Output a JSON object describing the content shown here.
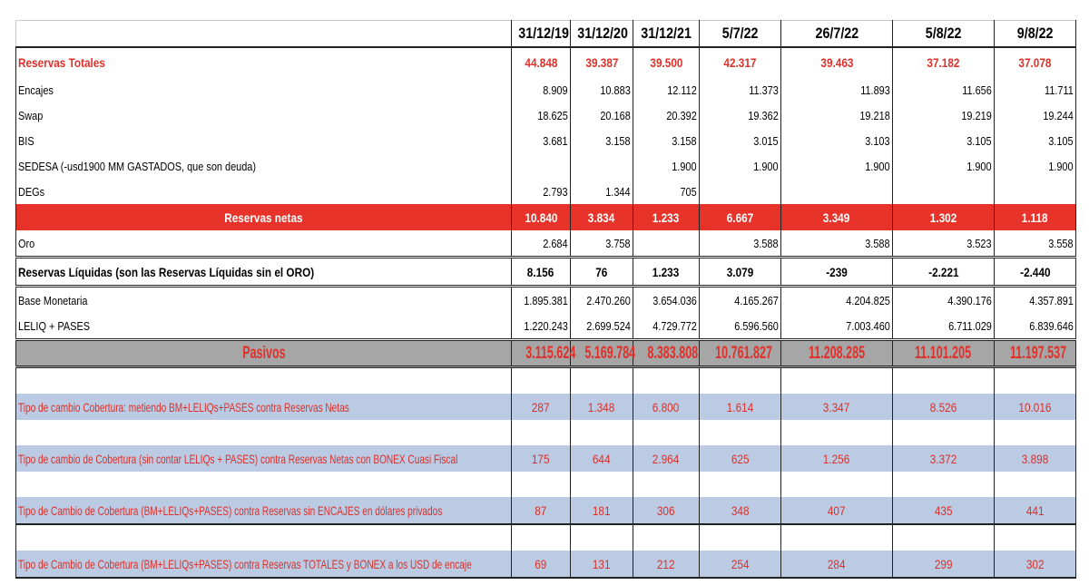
{
  "columns": [
    "31/12/19",
    "31/12/20",
    "31/12/21",
    "5/7/22",
    "26/7/22",
    "5/8/22",
    "9/8/22"
  ],
  "rows": [
    {
      "type": "red-title",
      "label": "Reservas Totales",
      "values": [
        "44.848",
        "39.387",
        "39.500",
        "42.317",
        "39.463",
        "37.182",
        "37.078"
      ]
    },
    {
      "type": "plain",
      "label": "Encajes",
      "values": [
        "8.909",
        "10.883",
        "12.112",
        "11.373",
        "11.893",
        "11.656",
        "11.711"
      ]
    },
    {
      "type": "plain",
      "label": "Swap",
      "values": [
        "18.625",
        "20.168",
        "20.392",
        "19.362",
        "19.218",
        "19.219",
        "19.244"
      ]
    },
    {
      "type": "plain",
      "label": "BIS",
      "values": [
        "3.681",
        "3.158",
        "3.158",
        "3.015",
        "3.103",
        "3.105",
        "3.105"
      ]
    },
    {
      "type": "plain",
      "label": "SEDESA (-usd1900 MM GASTADOS, que son deuda)",
      "values": [
        "",
        "",
        "1.900",
        "1.900",
        "1.900",
        "1.900",
        "1.900"
      ]
    },
    {
      "type": "plain",
      "label": "DEGs",
      "values": [
        "2.793",
        "1.344",
        "705",
        "",
        "",
        "",
        ""
      ]
    },
    {
      "type": "netas",
      "label": "Reservas netas",
      "values": [
        "10.840",
        "3.834",
        "1.233",
        "6.667",
        "3.349",
        "1.302",
        "1.118"
      ]
    },
    {
      "type": "plain",
      "label": "Oro",
      "values": [
        "2.684",
        "3.758",
        "",
        "3.588",
        "3.588",
        "3.523",
        "3.558"
      ]
    },
    {
      "type": "liq",
      "label": "Reservas Líquidas (son las Reservas Líquidas sin el ORO)",
      "values": [
        "8.156",
        "76",
        "1.233",
        "3.079",
        "-239",
        "-2.221",
        "-2.440"
      ]
    },
    {
      "type": "plain",
      "label": "Base Monetaria",
      "values": [
        "1.895.381",
        "2.470.260",
        "3.654.036",
        "4.165.267",
        "4.204.825",
        "4.390.176",
        "4.357.891"
      ]
    },
    {
      "type": "plain",
      "label": "LELIQ + PASES",
      "values": [
        "1.220.243",
        "2.699.524",
        "4.729.772",
        "6.596.560",
        "7.003.460",
        "6.711.029",
        "6.839.646"
      ]
    },
    {
      "type": "pas",
      "label": "Pasivos",
      "values": [
        "3.115.624",
        "5.169.784",
        "8.383.808",
        "10.761.827",
        "11.208.285",
        "11.101.205",
        "11.197.537"
      ]
    },
    {
      "type": "blank",
      "label": "",
      "values": [
        "",
        "",
        "",
        "",
        "",
        "",
        ""
      ]
    },
    {
      "type": "cob",
      "label": "Tipo de cambio Cobertura: metiendo BM+LELIQs+PASES contra Reservas Netas",
      "values": [
        "287",
        "1.348",
        "6.800",
        "1.614",
        "3.347",
        "8.526",
        "10.016"
      ]
    },
    {
      "type": "blank",
      "label": "",
      "values": [
        "",
        "",
        "",
        "",
        "",
        "",
        ""
      ]
    },
    {
      "type": "cob",
      "label": "Tipo de cambio de Cobertura (sin contar LELIQs + PASES) contra Reservas Netas con BONEX Cuasi Fiscal",
      "values": [
        "175",
        "644",
        "2.964",
        "625",
        "1.256",
        "3.372",
        "3.898"
      ]
    },
    {
      "type": "blank",
      "label": "",
      "values": [
        "",
        "",
        "",
        "",
        "",
        "",
        ""
      ]
    },
    {
      "type": "cob",
      "label": "Tipo de Cambio de Cobertura (BM+LELIQs+PASES) contra Reservas sin ENCAJES en dólares privados",
      "values": [
        "87",
        "181",
        "306",
        "348",
        "407",
        "435",
        "441"
      ]
    },
    {
      "type": "blank thick",
      "label": "",
      "values": [
        "",
        "",
        "",
        "",
        "",
        "",
        ""
      ]
    },
    {
      "type": "cob last",
      "label": "Tipo de Cambio de Cobertura (BM+LELIQs+PASES) contra Reservas TOTALES y BONEX a los USD de encaje",
      "values": [
        "69",
        "131",
        "212",
        "254",
        "284",
        "299",
        "302"
      ]
    }
  ],
  "colors": {
    "accent_red": "#e8332a",
    "text_red": "#e0302a",
    "gray": "#a6a6a6",
    "blue_band": "#bccbe4"
  }
}
